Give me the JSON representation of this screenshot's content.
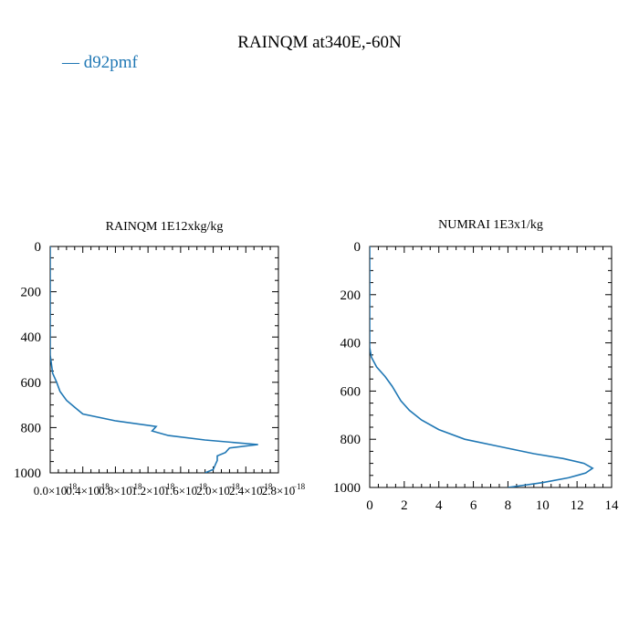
{
  "figure": {
    "title": "RAINQM at340E,-60N",
    "legend": [
      "d92pmf"
    ],
    "line_color": "#1f77b4"
  },
  "chart_data": [
    {
      "type": "line",
      "title": "RAINQM  1E12xkg/kg",
      "xlabel": "",
      "ylabel": "",
      "xlim": [
        0,
        2.8e-18
      ],
      "ylim": [
        1000,
        0
      ],
      "y_inverted": true,
      "x_ticks": [
        0,
        4e-19,
        8e-19,
        1.2e-18,
        1.6e-18,
        2e-18,
        2.4e-18,
        2.8e-18
      ],
      "x_tick_labels": [
        "0.0×10",
        "0.4×10",
        "0.8×10",
        "1.2×10",
        "1.6×10",
        "2.0×10",
        "2.4×10",
        "2.8×10"
      ],
      "x_tick_exponents": [
        "−18",
        "−18",
        "−18",
        "−18",
        "−18",
        "−18",
        "−18",
        "−18"
      ],
      "y_ticks": [
        0,
        200,
        400,
        600,
        800,
        1000
      ],
      "y_tick_labels": [
        "0",
        "200",
        "400",
        "600",
        "800",
        "1000"
      ],
      "grid": false,
      "series": [
        {
          "name": "d92pmf",
          "x": [
            0,
            0.0,
            3e-20,
            8e-20,
            1.2e-19,
            2e-19,
            3e-19,
            4e-19,
            8e-19,
            1.3e-18,
            1.25e-18,
            1.45e-18,
            1.9e-18,
            2.55e-18,
            2.2e-18,
            2.15e-18,
            2.05e-18,
            2.05e-18,
            2.03e-18,
            2e-18,
            1.9e-18
          ],
          "y": [
            0,
            480,
            560,
            600,
            640,
            680,
            710,
            740,
            770,
            795,
            815,
            835,
            855,
            875,
            890,
            910,
            925,
            945,
            960,
            985,
            1000
          ]
        }
      ]
    },
    {
      "type": "line",
      "title": "NUMRAI  1E3x1/kg",
      "xlabel": "",
      "ylabel": "",
      "xlim": [
        0,
        14
      ],
      "ylim": [
        1000,
        0
      ],
      "y_inverted": true,
      "x_ticks": [
        0,
        2,
        4,
        6,
        8,
        10,
        12,
        14
      ],
      "x_tick_labels": [
        "0",
        "2",
        "4",
        "6",
        "8",
        "10",
        "12",
        "14"
      ],
      "y_ticks": [
        0,
        200,
        400,
        600,
        800,
        1000
      ],
      "y_tick_labels": [
        "0",
        "200",
        "400",
        "600",
        "800",
        "1000"
      ],
      "grid": false,
      "series": [
        {
          "name": "d92pmf",
          "x": [
            0,
            0,
            0.1,
            0.4,
            0.9,
            1.3,
            1.8,
            2.3,
            3.0,
            4.0,
            5.5,
            7.5,
            9.5,
            11.2,
            12.4,
            12.9,
            12.5,
            11.5,
            10.0,
            8.0
          ],
          "y": [
            0,
            420,
            460,
            500,
            540,
            580,
            640,
            680,
            720,
            760,
            800,
            830,
            860,
            880,
            900,
            920,
            940,
            960,
            980,
            1000
          ]
        }
      ]
    }
  ]
}
